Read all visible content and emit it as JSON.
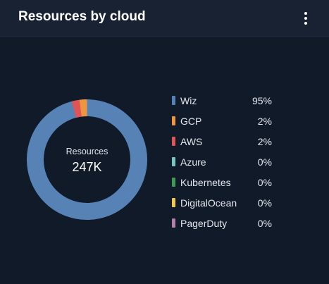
{
  "card": {
    "title": "Resources by cloud",
    "menu_icon": "more-vertical-icon"
  },
  "chart_data": {
    "type": "pie",
    "style": "donut",
    "title": "Resources by cloud",
    "center_label": "Resources",
    "center_value": "247K",
    "legend_position": "right",
    "categories": [
      "Wiz",
      "GCP",
      "AWS",
      "Azure",
      "Kubernetes",
      "DigitalOcean",
      "PagerDuty"
    ],
    "values": [
      95,
      2,
      2,
      0,
      0,
      0,
      0
    ],
    "value_labels": [
      "95%",
      "2%",
      "2%",
      "0%",
      "0%",
      "0%",
      "0%"
    ],
    "colors": [
      "#5782b6",
      "#f0943e",
      "#e05455",
      "#7bc4c4",
      "#3f9a55",
      "#f0c94d",
      "#b47eaa"
    ],
    "unit": "%"
  }
}
